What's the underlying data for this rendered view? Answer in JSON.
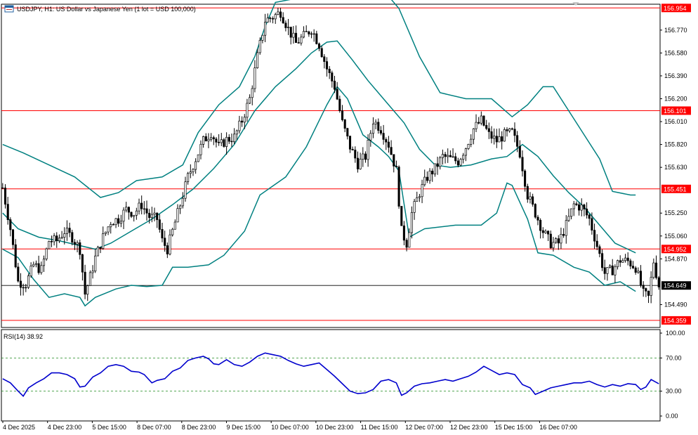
{
  "header": {
    "title": "USDJPY, H1:  US Dollar vs Japanese Yen (1 lot = USD 100,000)"
  },
  "colors": {
    "candle": "#000000",
    "bollinger": "#008080",
    "level": "#ff0000",
    "rsi": "#0000cd",
    "rsi_level": "#1e8a1e",
    "current": "#000000"
  },
  "chart_data": [
    {
      "type": "candlestick",
      "symbol": "USDJPY",
      "timeframe": "H1",
      "ylim": [
        154.3,
        156.985
      ],
      "price_ticks": [
        "156.770",
        "156.580",
        "156.390",
        "156.200",
        "156.010",
        "155.820",
        "155.630",
        "155.250",
        "155.060",
        "154.870",
        "154.490"
      ],
      "x_labels": [
        "4 Dec 2025",
        "4 Dec 23:00",
        "5 Dec 15:00",
        "8 Dec 07:00",
        "8 Dec 23:00",
        "9 Dec 15:00",
        "10 Dec 07:00",
        "10 Dec 23:00",
        "11 Dec 15:00",
        "12 Dec 07:00",
        "12 Dec 23:00",
        "15 Dec 15:00",
        "16 Dec 07:00"
      ],
      "levels": [
        {
          "value": 156.954,
          "label": "156.954"
        },
        {
          "value": 156.101,
          "label": "156.101"
        },
        {
          "value": 155.451,
          "label": "155.451"
        },
        {
          "value": 154.952,
          "label": "154.952"
        },
        {
          "value": 154.359,
          "label": "154.359"
        }
      ],
      "current_price": {
        "value": 154.649,
        "label": "154.649"
      },
      "price_path": [
        [
          0,
          155.46
        ],
        [
          3,
          155.12
        ],
        [
          6,
          154.68
        ],
        [
          9,
          154.66
        ],
        [
          12,
          154.82
        ],
        [
          15,
          154.78
        ],
        [
          18,
          155.02
        ],
        [
          21,
          155.02
        ],
        [
          24,
          155.1
        ],
        [
          27,
          155.05
        ],
        [
          30,
          154.95
        ],
        [
          32,
          154.58
        ],
        [
          34,
          154.72
        ],
        [
          36,
          154.88
        ],
        [
          39,
          155.05
        ],
        [
          42,
          155.18
        ],
        [
          45,
          155.2
        ],
        [
          48,
          155.28
        ],
        [
          51,
          155.25
        ],
        [
          54,
          155.32
        ],
        [
          57,
          155.22
        ],
        [
          60,
          155.2
        ],
        [
          62,
          155.02
        ],
        [
          64,
          154.95
        ],
        [
          66,
          155.1
        ],
        [
          69,
          155.32
        ],
        [
          72,
          155.55
        ],
        [
          75,
          155.7
        ],
        [
          78,
          155.85
        ],
        [
          81,
          155.92
        ],
        [
          84,
          155.8
        ],
        [
          87,
          155.86
        ],
        [
          90,
          155.88
        ],
        [
          93,
          156.02
        ],
        [
          96,
          156.2
        ],
        [
          99,
          156.55
        ],
        [
          102,
          156.85
        ],
        [
          105,
          156.88
        ],
        [
          108,
          156.92
        ],
        [
          111,
          156.78
        ],
        [
          114,
          156.66
        ],
        [
          117,
          156.72
        ],
        [
          120,
          156.78
        ],
        [
          123,
          156.65
        ],
        [
          126,
          156.45
        ],
        [
          129,
          156.3
        ],
        [
          132,
          156.0
        ],
        [
          135,
          155.8
        ],
        [
          138,
          155.66
        ],
        [
          141,
          155.72
        ],
        [
          144,
          156.02
        ],
        [
          147,
          155.95
        ],
        [
          150,
          155.82
        ],
        [
          153,
          155.6
        ],
        [
          155,
          155.1
        ],
        [
          157,
          155.0
        ],
        [
          159,
          155.25
        ],
        [
          162,
          155.42
        ],
        [
          165,
          155.55
        ],
        [
          168,
          155.62
        ],
        [
          171,
          155.72
        ],
        [
          174,
          155.7
        ],
        [
          177,
          155.68
        ],
        [
          180,
          155.8
        ],
        [
          183,
          155.95
        ],
        [
          186,
          156.02
        ],
        [
          189,
          155.9
        ],
        [
          192,
          155.85
        ],
        [
          195,
          155.9
        ],
        [
          198,
          155.92
        ],
        [
          201,
          155.75
        ],
        [
          204,
          155.4
        ],
        [
          207,
          155.25
        ],
        [
          210,
          155.1
        ],
        [
          213,
          155.0
        ],
        [
          216,
          155.0
        ],
        [
          219,
          155.15
        ],
        [
          222,
          155.32
        ],
        [
          225,
          155.3
        ],
        [
          228,
          155.2
        ],
        [
          231,
          154.98
        ],
        [
          234,
          154.75
        ],
        [
          237,
          154.78
        ],
        [
          240,
          154.86
        ],
        [
          243,
          154.85
        ],
        [
          246,
          154.8
        ],
        [
          249,
          154.58
        ],
        [
          251,
          154.55
        ],
        [
          253,
          154.85
        ],
        [
          255,
          154.65
        ]
      ],
      "bollinger": {
        "upper": [
          [
            0,
            155.82
          ],
          [
            8,
            155.75
          ],
          [
            18,
            155.65
          ],
          [
            28,
            155.55
          ],
          [
            38,
            155.38
          ],
          [
            45,
            155.42
          ],
          [
            52,
            155.52
          ],
          [
            62,
            155.55
          ],
          [
            70,
            155.65
          ],
          [
            76,
            155.92
          ],
          [
            84,
            156.15
          ],
          [
            92,
            156.3
          ],
          [
            98,
            156.55
          ],
          [
            102,
            156.8
          ],
          [
            106,
            157.0
          ],
          [
            118,
            157.05
          ],
          [
            126,
            157.15
          ],
          [
            134,
            157.2
          ],
          [
            146,
            157.15
          ],
          [
            154,
            156.95
          ],
          [
            162,
            156.55
          ],
          [
            170,
            156.25
          ],
          [
            180,
            156.2
          ],
          [
            190,
            156.2
          ],
          [
            198,
            156.05
          ],
          [
            204,
            156.15
          ],
          [
            210,
            156.3
          ],
          [
            214,
            156.3
          ],
          [
            220,
            156.1
          ],
          [
            226,
            155.9
          ],
          [
            232,
            155.7
          ],
          [
            237,
            155.43
          ],
          [
            244,
            155.4
          ],
          [
            246,
            155.4
          ]
        ],
        "middle": [
          [
            0,
            155.25
          ],
          [
            6,
            155.12
          ],
          [
            14,
            155.05
          ],
          [
            22,
            155.02
          ],
          [
            30,
            154.98
          ],
          [
            36,
            154.95
          ],
          [
            42,
            155.0
          ],
          [
            50,
            155.1
          ],
          [
            58,
            155.2
          ],
          [
            66,
            155.32
          ],
          [
            74,
            155.45
          ],
          [
            82,
            155.62
          ],
          [
            90,
            155.82
          ],
          [
            98,
            156.1
          ],
          [
            106,
            156.3
          ],
          [
            114,
            156.45
          ],
          [
            120,
            156.58
          ],
          [
            126,
            156.67
          ],
          [
            130,
            156.68
          ],
          [
            136,
            156.52
          ],
          [
            142,
            156.35
          ],
          [
            150,
            156.15
          ],
          [
            156,
            156.0
          ],
          [
            162,
            155.78
          ],
          [
            168,
            155.65
          ],
          [
            174,
            155.63
          ],
          [
            182,
            155.65
          ],
          [
            190,
            155.7
          ],
          [
            196,
            155.72
          ],
          [
            202,
            155.82
          ],
          [
            208,
            155.72
          ],
          [
            214,
            155.56
          ],
          [
            220,
            155.42
          ],
          [
            226,
            155.3
          ],
          [
            232,
            155.15
          ],
          [
            238,
            155.0
          ],
          [
            246,
            154.92
          ]
        ],
        "lower": [
          [
            0,
            154.95
          ],
          [
            6,
            154.88
          ],
          [
            12,
            154.7
          ],
          [
            18,
            154.55
          ],
          [
            24,
            154.58
          ],
          [
            30,
            154.55
          ],
          [
            32,
            154.48
          ],
          [
            36,
            154.55
          ],
          [
            44,
            154.62
          ],
          [
            50,
            154.65
          ],
          [
            56,
            154.64
          ],
          [
            62,
            154.65
          ],
          [
            66,
            154.8
          ],
          [
            72,
            154.8
          ],
          [
            80,
            154.82
          ],
          [
            86,
            154.9
          ],
          [
            94,
            155.1
          ],
          [
            100,
            155.4
          ],
          [
            110,
            155.55
          ],
          [
            118,
            155.8
          ],
          [
            126,
            156.15
          ],
          [
            130,
            156.3
          ],
          [
            134,
            156.2
          ],
          [
            140,
            155.9
          ],
          [
            146,
            155.8
          ],
          [
            150,
            155.72
          ],
          [
            154,
            155.6
          ],
          [
            158,
            155.05
          ],
          [
            164,
            155.12
          ],
          [
            176,
            155.15
          ],
          [
            186,
            155.15
          ],
          [
            192,
            155.25
          ],
          [
            196,
            155.5
          ],
          [
            198,
            155.48
          ],
          [
            204,
            155.2
          ],
          [
            208,
            154.92
          ],
          [
            214,
            154.9
          ],
          [
            222,
            154.8
          ],
          [
            228,
            154.76
          ],
          [
            234,
            154.65
          ],
          [
            240,
            154.68
          ],
          [
            246,
            154.6
          ]
        ]
      }
    },
    {
      "type": "line",
      "indicator": "RSI(14) 38.92",
      "ylim": [
        0,
        100
      ],
      "y_ticks": [
        "100.00",
        "70.00",
        "30.00",
        "0.00"
      ],
      "levels": [
        70,
        30
      ],
      "rsi_path": [
        [
          0,
          45
        ],
        [
          3,
          40
        ],
        [
          6,
          30
        ],
        [
          8,
          24
        ],
        [
          10,
          34
        ],
        [
          13,
          40
        ],
        [
          16,
          45
        ],
        [
          19,
          52
        ],
        [
          22,
          52
        ],
        [
          25,
          50
        ],
        [
          28,
          45
        ],
        [
          30,
          35
        ],
        [
          32,
          36
        ],
        [
          35,
          47
        ],
        [
          38,
          52
        ],
        [
          41,
          60
        ],
        [
          44,
          62
        ],
        [
          47,
          60
        ],
        [
          50,
          54
        ],
        [
          53,
          53
        ],
        [
          55,
          50
        ],
        [
          58,
          40
        ],
        [
          60,
          43
        ],
        [
          63,
          45
        ],
        [
          66,
          54
        ],
        [
          69,
          58
        ],
        [
          72,
          67
        ],
        [
          75,
          70
        ],
        [
          78,
          72
        ],
        [
          80,
          69
        ],
        [
          82,
          63
        ],
        [
          84,
          62
        ],
        [
          87,
          68
        ],
        [
          90,
          62
        ],
        [
          93,
          60
        ],
        [
          96,
          65
        ],
        [
          99,
          72
        ],
        [
          102,
          76
        ],
        [
          105,
          74
        ],
        [
          108,
          72
        ],
        [
          111,
          67
        ],
        [
          114,
          63
        ],
        [
          117,
          60
        ],
        [
          120,
          62
        ],
        [
          123,
          64
        ],
        [
          126,
          56
        ],
        [
          129,
          48
        ],
        [
          132,
          39
        ],
        [
          135,
          30
        ],
        [
          138,
          27
        ],
        [
          141,
          28
        ],
        [
          144,
          32
        ],
        [
          147,
          42
        ],
        [
          150,
          44
        ],
        [
          153,
          40
        ],
        [
          155,
          25
        ],
        [
          157,
          28
        ],
        [
          160,
          36
        ],
        [
          163,
          39
        ],
        [
          166,
          40
        ],
        [
          169,
          42
        ],
        [
          172,
          44
        ],
        [
          175,
          42
        ],
        [
          178,
          45
        ],
        [
          181,
          48
        ],
        [
          184,
          53
        ],
        [
          187,
          60
        ],
        [
          190,
          55
        ],
        [
          193,
          50
        ],
        [
          196,
          52
        ],
        [
          199,
          50
        ],
        [
          202,
          38
        ],
        [
          205,
          34
        ],
        [
          207,
          26
        ],
        [
          210,
          30
        ],
        [
          213,
          34
        ],
        [
          216,
          36
        ],
        [
          219,
          38
        ],
        [
          222,
          40
        ],
        [
          225,
          40
        ],
        [
          228,
          42
        ],
        [
          231,
          38
        ],
        [
          234,
          35
        ],
        [
          237,
          38
        ],
        [
          240,
          36
        ],
        [
          243,
          39
        ],
        [
          246,
          38
        ],
        [
          248,
          32
        ],
        [
          250,
          35
        ],
        [
          252,
          44
        ],
        [
          255,
          38.92
        ]
      ]
    }
  ]
}
